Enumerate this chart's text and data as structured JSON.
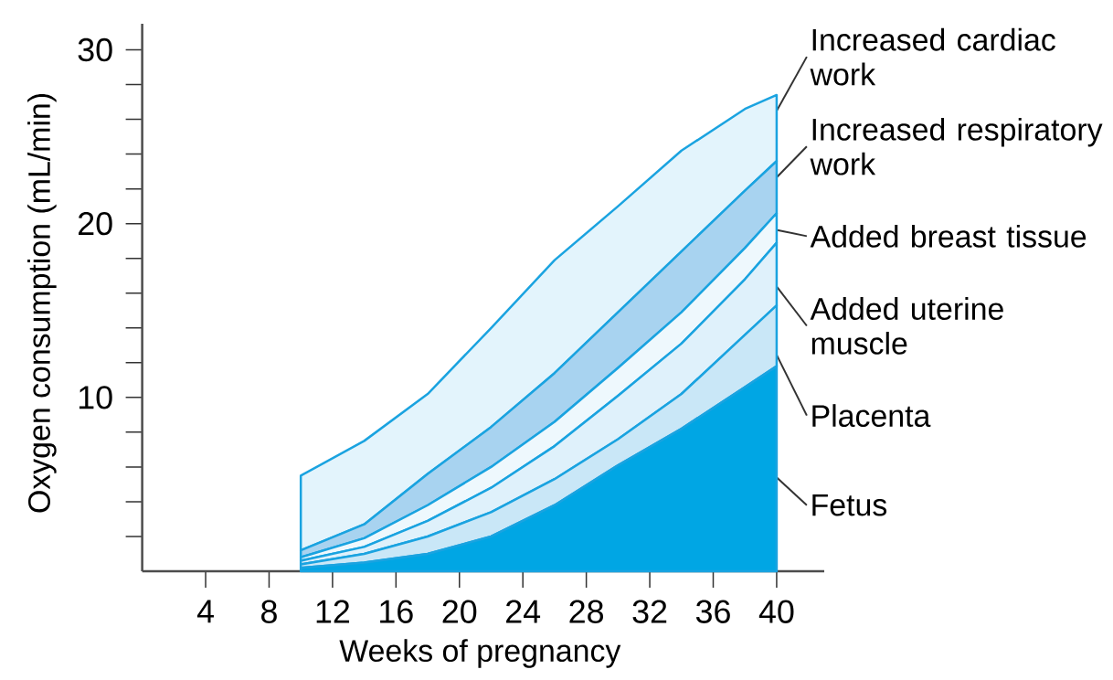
{
  "chart_data": {
    "type": "area",
    "stacked": true,
    "xlabel": "Weeks of pregnancy",
    "ylabel": "Oxygen consumption (mL/min)",
    "x": [
      10,
      14,
      18,
      22,
      26,
      30,
      34,
      38,
      40
    ],
    "xlim": [
      0,
      43
    ],
    "ylim": [
      0,
      31.5
    ],
    "xticks": [
      4,
      8,
      12,
      16,
      20,
      24,
      28,
      32,
      36,
      40
    ],
    "yticks": [
      10,
      20,
      30
    ],
    "series": [
      {
        "name": "Fetus",
        "color": "#00a6e4",
        "values": [
          0.2,
          0.5,
          1.0,
          2.0,
          3.8,
          6.1,
          8.2,
          10.6,
          11.8
        ]
      },
      {
        "name": "Placenta",
        "color": "#c9e7f7",
        "values": [
          0.2,
          0.5,
          1.0,
          1.4,
          1.5,
          1.5,
          2.0,
          3.0,
          3.5
        ]
      },
      {
        "name": "Added uterine muscle",
        "color": "#dff1fb",
        "values": [
          0.2,
          0.4,
          0.9,
          1.4,
          1.9,
          2.5,
          2.9,
          3.2,
          3.6
        ]
      },
      {
        "name": "Added breast tissue",
        "color": "#eef8fd",
        "values": [
          0.2,
          0.5,
          0.9,
          1.2,
          1.4,
          1.6,
          1.8,
          1.8,
          1.7
        ]
      },
      {
        "name": "Increased respiratory work",
        "color": "#a8d3f0",
        "values": [
          0.4,
          0.8,
          1.8,
          2.3,
          2.8,
          3.2,
          3.5,
          3.3,
          3.0
        ]
      },
      {
        "name": "Increased cardiac work",
        "color": "#e3f4fc",
        "values": [
          4.3,
          4.8,
          4.6,
          5.7,
          6.5,
          6.1,
          5.8,
          4.7,
          3.8
        ]
      }
    ]
  }
}
